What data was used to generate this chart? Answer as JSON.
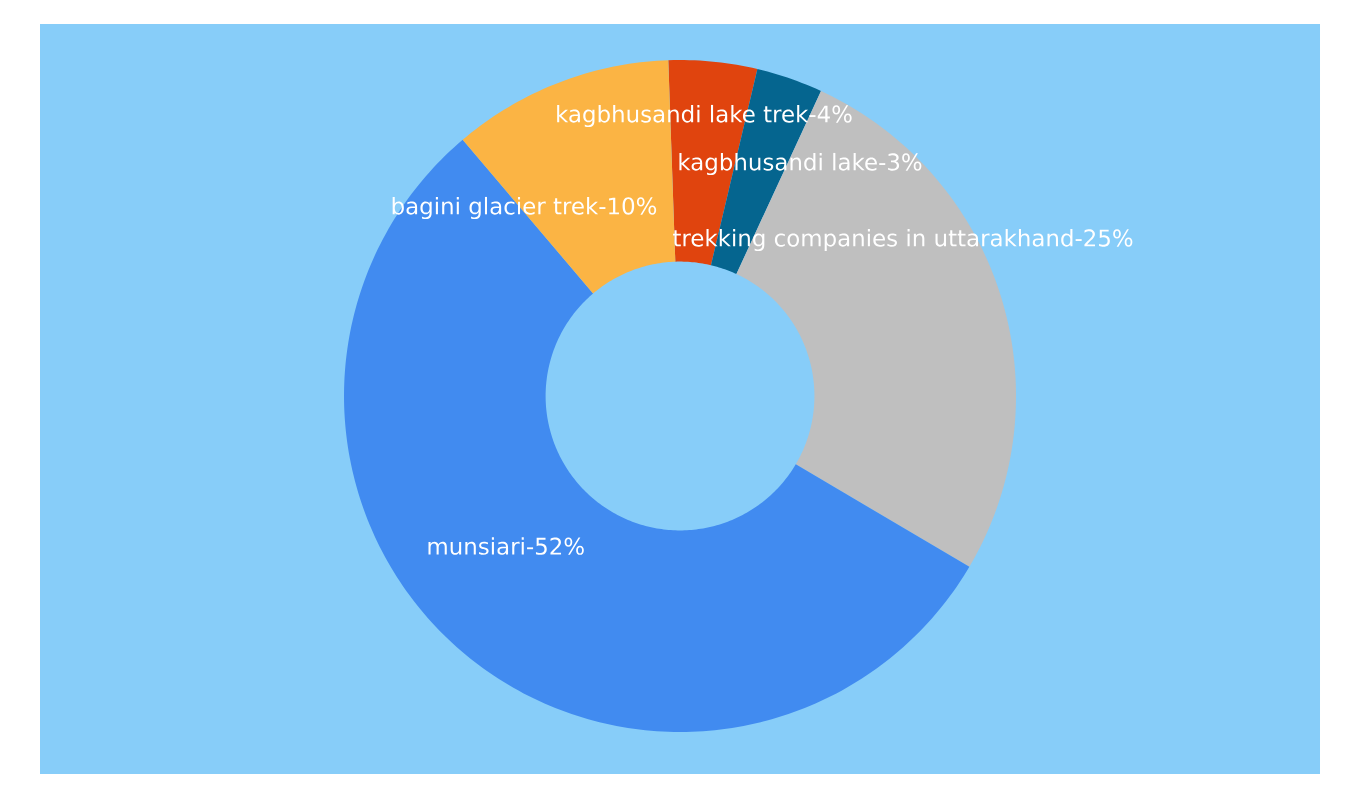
{
  "chart_data": {
    "type": "donut",
    "categories": [
      "kagbhusandi lake trek-",
      "kagbhusandi lake-",
      "trekking companies in uttarakhand-",
      "munsiari-",
      "bagini glacier trek-"
    ],
    "values": [
      4,
      3,
      25,
      52,
      10
    ],
    "value_labels": [
      "4%",
      "3%",
      "25%",
      "52%",
      "10%"
    ],
    "colors": [
      "#e0440e",
      "#05658f",
      "#bfbfbf",
      "#418bf0",
      "#fbb444"
    ]
  }
}
